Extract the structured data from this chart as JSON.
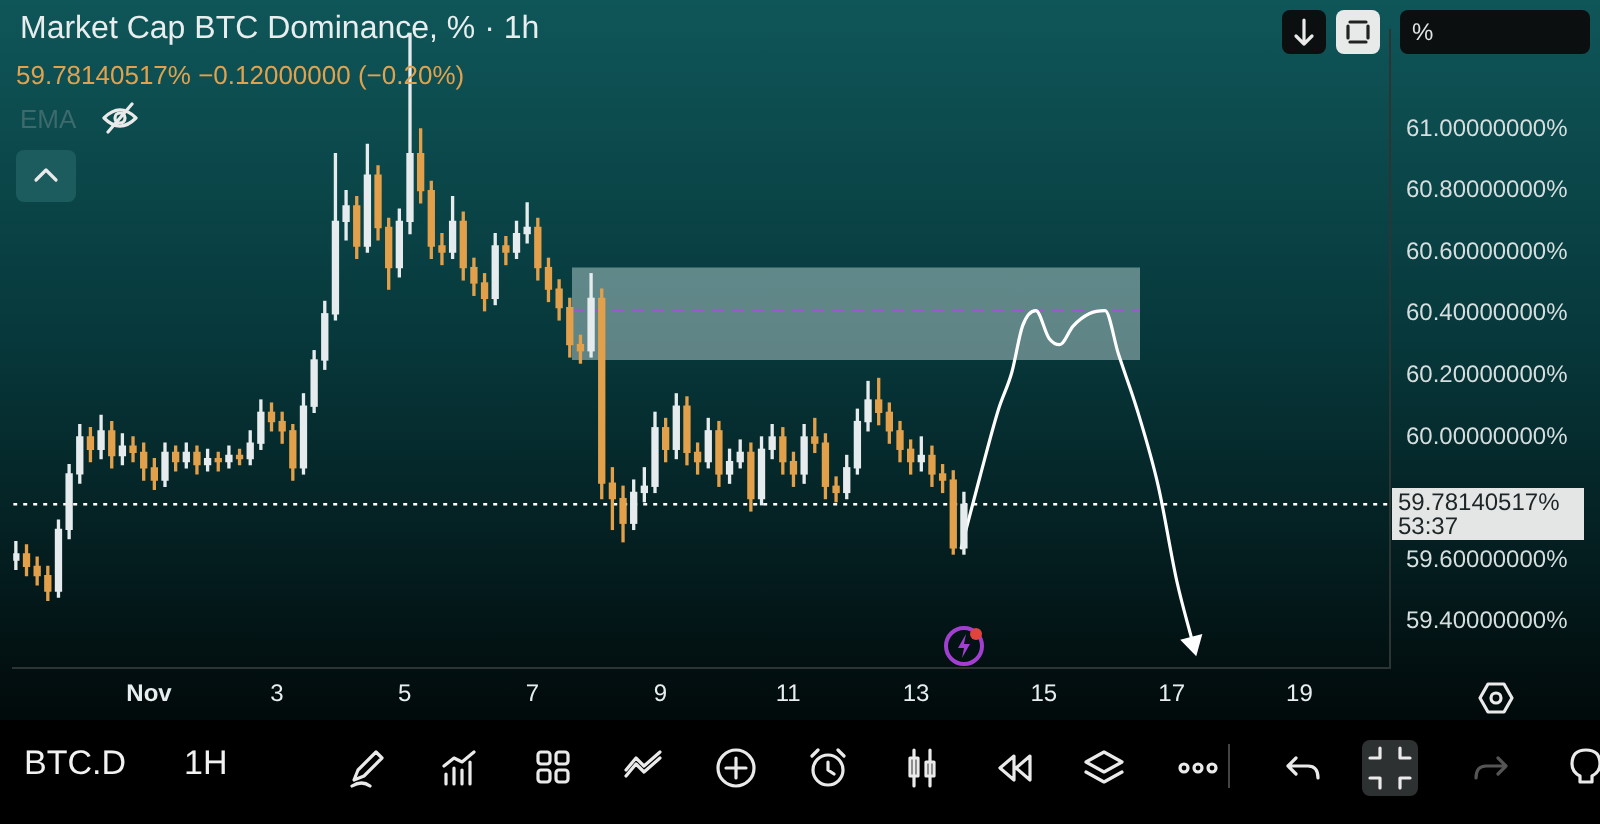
{
  "chart_data": {
    "type": "candlestick",
    "title": "Market Cap BTC Dominance, % · 1h",
    "subtitle": "59.78140517% −0.12000000 (−0.20%)",
    "annotations": [
      "EMA",
      "%",
      "BTC.D",
      "1H",
      "53:37"
    ],
    "xlim": [
      "--10-29T21:00",
      "--11-20T10:00"
    ],
    "xticks": [
      {
        "value": "--11-01",
        "label": "Nov"
      },
      {
        "value": "--11-03",
        "label": "3"
      },
      {
        "value": "--11-05",
        "label": "5"
      },
      {
        "value": "--11-07",
        "label": "7"
      },
      {
        "value": "--11-09",
        "label": "9"
      },
      {
        "value": "--11-11",
        "label": "11"
      },
      {
        "value": "--11-13",
        "label": "13"
      },
      {
        "value": "--11-15",
        "label": "15"
      },
      {
        "value": "--11-17",
        "label": "17"
      },
      {
        "value": "--11-19",
        "label": "19"
      }
    ],
    "ylim": [
      59.25,
      61.32
    ],
    "yticks": [
      {
        "value": 59.4,
        "label": "59.40000000%"
      },
      {
        "value": 59.6,
        "label": "59.60000000%"
      },
      {
        "value": 60,
        "label": "60.00000000%"
      },
      {
        "value": 60.2,
        "label": "60.20000000%"
      },
      {
        "value": 60.4,
        "label": "60.40000000%"
      },
      {
        "value": 60.6,
        "label": "60.60000000%"
      },
      {
        "value": 60.8,
        "label": "60.80000000%"
      },
      {
        "value": 61,
        "label": "61.00000000%"
      }
    ],
    "bands": [
      {
        "axis": "y",
        "from": 60.25,
        "to": 60.55,
        "color": "#a9c4c4"
      }
    ],
    "ref_lines": [
      {
        "axis": "y",
        "value": 60.41,
        "color": "#9b59d0",
        "line_style": "dashed"
      },
      {
        "axis": "y",
        "value": 59.78140517,
        "label": "59.78140517%",
        "color": "#ffffff",
        "line_style": "dotted"
      }
    ],
    "series": [
      {
        "type": "candlestick",
        "x": [
          "--10-29T22:00",
          "--10-30T02:00",
          "--10-30T06:00",
          "--10-30T10:00",
          "--10-30T14:00",
          "--10-30T18:00",
          "--10-30T22:00",
          "--10-31T02:00",
          "--10-31T06:00",
          "--10-31T10:00",
          "--10-31T14:00",
          "--10-31T18:00",
          "--10-31T22:00",
          "--11-01T02:00",
          "--11-01T06:00",
          "--11-01T10:00",
          "--11-01T14:00",
          "--11-01T18:00",
          "--11-01T22:00",
          "--11-02T02:00",
          "--11-02T06:00",
          "--11-02T10:00",
          "--11-02T14:00",
          "--11-02T18:00",
          "--11-02T22:00",
          "--11-03T02:00",
          "--11-03T06:00",
          "--11-03T10:00",
          "--11-03T14:00",
          "--11-03T18:00",
          "--11-03T22:00",
          "--11-04T02:00",
          "--11-04T06:00",
          "--11-04T10:00",
          "--11-04T14:00",
          "--11-04T18:00",
          "--11-04T22:00",
          "--11-05T02:00",
          "--11-05T06:00",
          "--11-05T10:00",
          "--11-05T14:00",
          "--11-05T18:00",
          "--11-05T22:00",
          "--11-06T02:00",
          "--11-06T06:00",
          "--11-06T10:00",
          "--11-06T14:00",
          "--11-06T18:00",
          "--11-06T22:00",
          "--11-07T02:00",
          "--11-07T06:00",
          "--11-07T10:00",
          "--11-07T14:00",
          "--11-07T18:00",
          "--11-07T22:00",
          "--11-08T02:00",
          "--11-08T06:00",
          "--11-08T10:00",
          "--11-08T14:00",
          "--11-08T18:00",
          "--11-08T22:00",
          "--11-09T02:00",
          "--11-09T06:00",
          "--11-09T10:00",
          "--11-09T14:00",
          "--11-09T18:00",
          "--11-09T22:00",
          "--11-10T02:00",
          "--11-10T06:00",
          "--11-10T10:00",
          "--11-10T14:00",
          "--11-10T18:00",
          "--11-10T22:00",
          "--11-11T02:00",
          "--11-11T06:00",
          "--11-11T10:00",
          "--11-11T14:00",
          "--11-11T18:00",
          "--11-11T22:00",
          "--11-12T02:00",
          "--11-12T06:00",
          "--11-12T10:00",
          "--11-12T14:00",
          "--11-12T18:00",
          "--11-12T22:00",
          "--11-13T02:00",
          "--11-13T06:00",
          "--11-13T10:00",
          "--11-13T14:00",
          "--11-13T18:00"
        ],
        "ohlc": [
          [
            59.6,
            59.66,
            59.57,
            59.62
          ],
          [
            59.62,
            59.65,
            59.55,
            59.58
          ],
          [
            59.58,
            59.61,
            59.52,
            59.55
          ],
          [
            59.55,
            59.58,
            59.47,
            59.5
          ],
          [
            59.5,
            59.73,
            59.48,
            59.7
          ],
          [
            59.7,
            59.91,
            59.67,
            59.88
          ],
          [
            59.88,
            60.04,
            59.85,
            60.0
          ],
          [
            60.0,
            60.03,
            59.92,
            59.96
          ],
          [
            59.96,
            60.07,
            59.93,
            60.02
          ],
          [
            60.02,
            60.05,
            59.9,
            59.94
          ],
          [
            59.94,
            60.01,
            59.91,
            59.97
          ],
          [
            59.97,
            60.0,
            59.92,
            59.95
          ],
          [
            59.95,
            59.98,
            59.86,
            59.9
          ],
          [
            59.9,
            59.93,
            59.83,
            59.86
          ],
          [
            59.86,
            59.98,
            59.84,
            59.95
          ],
          [
            59.95,
            59.97,
            59.89,
            59.92
          ],
          [
            59.92,
            59.98,
            59.9,
            59.95
          ],
          [
            59.95,
            59.97,
            59.88,
            59.91
          ],
          [
            59.91,
            59.96,
            59.89,
            59.93
          ],
          [
            59.93,
            59.95,
            59.89,
            59.92
          ],
          [
            59.92,
            59.97,
            59.9,
            59.94
          ],
          [
            59.94,
            59.96,
            59.91,
            59.93
          ],
          [
            59.93,
            60.02,
            59.91,
            59.98
          ],
          [
            59.98,
            60.12,
            59.96,
            60.08
          ],
          [
            60.08,
            60.11,
            60.02,
            60.05
          ],
          [
            60.05,
            60.08,
            59.98,
            60.02
          ],
          [
            60.02,
            60.04,
            59.86,
            59.9
          ],
          [
            59.9,
            60.14,
            59.88,
            60.1
          ],
          [
            60.1,
            60.28,
            60.08,
            60.25
          ],
          [
            60.25,
            60.44,
            60.22,
            60.4
          ],
          [
            60.4,
            60.92,
            60.38,
            60.7
          ],
          [
            60.7,
            60.8,
            60.64,
            60.75
          ],
          [
            60.75,
            60.78,
            60.58,
            60.62
          ],
          [
            60.62,
            60.95,
            60.6,
            60.85
          ],
          [
            60.85,
            60.88,
            60.64,
            60.68
          ],
          [
            60.68,
            60.71,
            60.48,
            60.55
          ],
          [
            60.55,
            60.74,
            60.52,
            60.7
          ],
          [
            60.7,
            61.31,
            60.66,
            60.92
          ],
          [
            60.92,
            61.0,
            60.76,
            60.8
          ],
          [
            60.8,
            60.83,
            60.58,
            60.62
          ],
          [
            60.62,
            60.66,
            60.56,
            60.6
          ],
          [
            60.6,
            60.78,
            60.58,
            60.7
          ],
          [
            60.7,
            60.73,
            60.51,
            60.55
          ],
          [
            60.55,
            60.58,
            60.46,
            60.5
          ],
          [
            60.5,
            60.53,
            60.41,
            60.45
          ],
          [
            60.45,
            60.66,
            60.43,
            60.62
          ],
          [
            60.62,
            60.65,
            60.56,
            60.6
          ],
          [
            60.6,
            60.7,
            60.58,
            60.66
          ],
          [
            60.66,
            60.76,
            60.63,
            60.68
          ],
          [
            60.68,
            60.71,
            60.51,
            60.55
          ],
          [
            60.55,
            60.58,
            60.44,
            60.48
          ],
          [
            60.48,
            60.51,
            60.38,
            60.42
          ],
          [
            60.42,
            60.45,
            60.26,
            60.3
          ],
          [
            60.3,
            60.33,
            60.24,
            60.28
          ],
          [
            60.28,
            60.53,
            60.26,
            60.45
          ],
          [
            60.45,
            60.48,
            59.8,
            59.85
          ],
          [
            59.85,
            59.9,
            59.7,
            59.8
          ],
          [
            59.8,
            59.84,
            59.66,
            59.72
          ],
          [
            59.72,
            59.86,
            59.7,
            59.82
          ],
          [
            59.82,
            59.9,
            59.79,
            59.84
          ],
          [
            59.84,
            60.08,
            59.82,
            60.03
          ],
          [
            60.03,
            60.06,
            59.92,
            59.96
          ],
          [
            59.96,
            60.14,
            59.93,
            60.1
          ],
          [
            60.1,
            60.13,
            59.91,
            59.95
          ],
          [
            59.95,
            59.98,
            59.88,
            59.92
          ],
          [
            59.92,
            60.06,
            59.9,
            60.02
          ],
          [
            60.02,
            60.05,
            59.84,
            59.88
          ],
          [
            59.88,
            59.96,
            59.85,
            59.92
          ],
          [
            59.92,
            59.99,
            59.9,
            59.95
          ],
          [
            59.95,
            59.98,
            59.76,
            59.8
          ],
          [
            59.8,
            60.0,
            59.78,
            59.96
          ],
          [
            59.96,
            60.04,
            59.93,
            60.0
          ],
          [
            60.0,
            60.03,
            59.88,
            59.92
          ],
          [
            59.92,
            59.95,
            59.84,
            59.88
          ],
          [
            59.88,
            60.04,
            59.85,
            60.0
          ],
          [
            60.0,
            60.06,
            59.95,
            59.98
          ],
          [
            59.98,
            60.01,
            59.8,
            59.84
          ],
          [
            59.84,
            59.87,
            59.79,
            59.82
          ],
          [
            59.82,
            59.94,
            59.8,
            59.9
          ],
          [
            59.9,
            60.09,
            59.88,
            60.05
          ],
          [
            60.05,
            60.18,
            60.02,
            60.12
          ],
          [
            60.12,
            60.19,
            60.04,
            60.08
          ],
          [
            60.08,
            60.11,
            59.98,
            60.02
          ],
          [
            60.02,
            60.05,
            59.92,
            59.96
          ],
          [
            59.96,
            59.99,
            59.88,
            59.92
          ],
          [
            59.92,
            60.0,
            59.89,
            59.94
          ],
          [
            59.94,
            59.97,
            59.84,
            59.88
          ],
          [
            59.88,
            59.91,
            59.82,
            59.86
          ],
          [
            59.86,
            59.89,
            59.62,
            59.64
          ],
          [
            59.64,
            59.82,
            59.62,
            59.78140517
          ]
        ],
        "colors": [
          "#e6ecee",
          "#e2a04a",
          "#e2a04a",
          "#e2a04a",
          "#e6ecee",
          "#e6ecee",
          "#e6ecee",
          "#e2a04a",
          "#e6ecee",
          "#e2a04a",
          "#e6ecee",
          "#e2a04a",
          "#e2a04a",
          "#e2a04a",
          "#e6ecee",
          "#e2a04a",
          "#e6ecee",
          "#e2a04a",
          "#e6ecee",
          "#e2a04a",
          "#e6ecee",
          "#e2a04a",
          "#e6ecee",
          "#e6ecee",
          "#e2a04a",
          "#e2a04a",
          "#e2a04a",
          "#e6ecee",
          "#e6ecee",
          "#e6ecee",
          "#e6ecee",
          "#e6ecee",
          "#e2a04a",
          "#e6ecee",
          "#e2a04a",
          "#e2a04a",
          "#e6ecee",
          "#e6ecee",
          "#e2a04a",
          "#e2a04a",
          "#e2a04a",
          "#e6ecee",
          "#e2a04a",
          "#e2a04a",
          "#e2a04a",
          "#e6ecee",
          "#e2a04a",
          "#e6ecee",
          "#e6ecee",
          "#e2a04a",
          "#e2a04a",
          "#e2a04a",
          "#e2a04a",
          "#e2a04a",
          "#e6ecee",
          "#e2a04a",
          "#e2a04a",
          "#e2a04a",
          "#e6ecee",
          "#e6ecee",
          "#e6ecee",
          "#e2a04a",
          "#e6ecee",
          "#e2a04a",
          "#e2a04a",
          "#e6ecee",
          "#e2a04a",
          "#e6ecee",
          "#e6ecee",
          "#e2a04a",
          "#e6ecee",
          "#e6ecee",
          "#e2a04a",
          "#e2a04a",
          "#e6ecee",
          "#e2a04a",
          "#e2a04a",
          "#e2a04a",
          "#e6ecee",
          "#e6ecee",
          "#e6ecee",
          "#e2a04a",
          "#e2a04a",
          "#e2a04a",
          "#e2a04a",
          "#e6ecee",
          "#e2a04a",
          "#e2a04a",
          "#e2a04a",
          "#e6ecee"
        ]
      },
      {
        "type": "line",
        "color": "#ffffff",
        "x": [
          "--11-13T17:00",
          "--11-14T00:00",
          "--11-14T07:00",
          "--11-14T12:00",
          "--11-14T16:00",
          "--11-14T21:00",
          "--11-15T02:00",
          "--11-15T06:00",
          "--11-15T11:00",
          "--11-15T17:00",
          "--11-15T23:00",
          "--11-16T04:00",
          "--11-16T11:00",
          "--11-16T19:00",
          "--11-17T02:00",
          "--11-17T08:00"
        ],
        "values": [
          59.64,
          59.87,
          60.09,
          60.21,
          60.36,
          60.41,
          60.32,
          60.3,
          60.36,
          60.4,
          60.41,
          60.27,
          60.09,
          59.84,
          59.53,
          59.33
        ]
      }
    ]
  }
}
